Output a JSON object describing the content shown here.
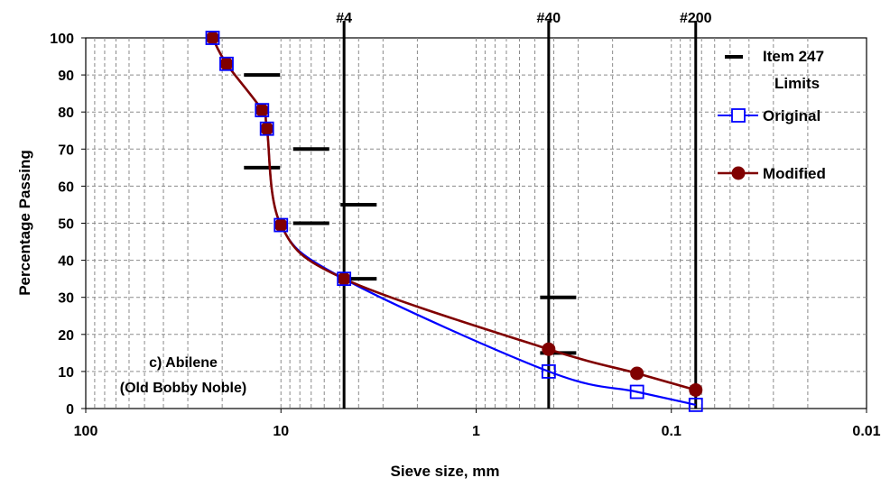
{
  "chart_data": {
    "type": "line",
    "xlabel": "Sieve size, mm",
    "ylabel": "Percentage Passing",
    "x_scale": "log",
    "x_reversed": true,
    "xlim": [
      100,
      0.01
    ],
    "ylim": [
      0,
      100
    ],
    "x_ticks": [
      "100",
      "10",
      "1",
      "0.1",
      "0.01"
    ],
    "y_ticks": [
      "0",
      "10",
      "20",
      "30",
      "40",
      "50",
      "60",
      "70",
      "80",
      "90",
      "100"
    ],
    "grid": true,
    "legend_position": "right",
    "series": [
      {
        "name": "Original",
        "color": "#0000ff",
        "marker": "open-square",
        "x": [
          22.4,
          19.0,
          12.5,
          11.8,
          10.0,
          4.75,
          0.425,
          0.15,
          0.075
        ],
        "y": [
          100,
          93,
          80.5,
          75.5,
          49.5,
          35,
          10,
          4.5,
          1
        ]
      },
      {
        "name": "Modified",
        "color": "#800000",
        "marker": "filled-circle",
        "x": [
          22.4,
          19.0,
          12.5,
          11.8,
          10.0,
          4.75,
          0.425,
          0.15,
          0.075
        ],
        "y": [
          100,
          93,
          80.5,
          75.5,
          49.5,
          35,
          16,
          9.5,
          5
        ]
      },
      {
        "name": "Item 247 Limits",
        "color": "#000000",
        "marker": "dash",
        "x": [
          12.5,
          12.5,
          7.0,
          4.0,
          7.0,
          4.0,
          0.38,
          0.38
        ],
        "y": [
          90,
          65,
          70,
          55,
          50,
          35,
          30,
          15
        ]
      }
    ],
    "sieve_lines": [
      {
        "label": "#4",
        "x": 4.75
      },
      {
        "label": "#40",
        "x": 0.425
      },
      {
        "label": "#200",
        "x": 0.075
      }
    ],
    "annotation": [
      "c) Abilene",
      "(Old Bobby Noble)"
    ]
  }
}
